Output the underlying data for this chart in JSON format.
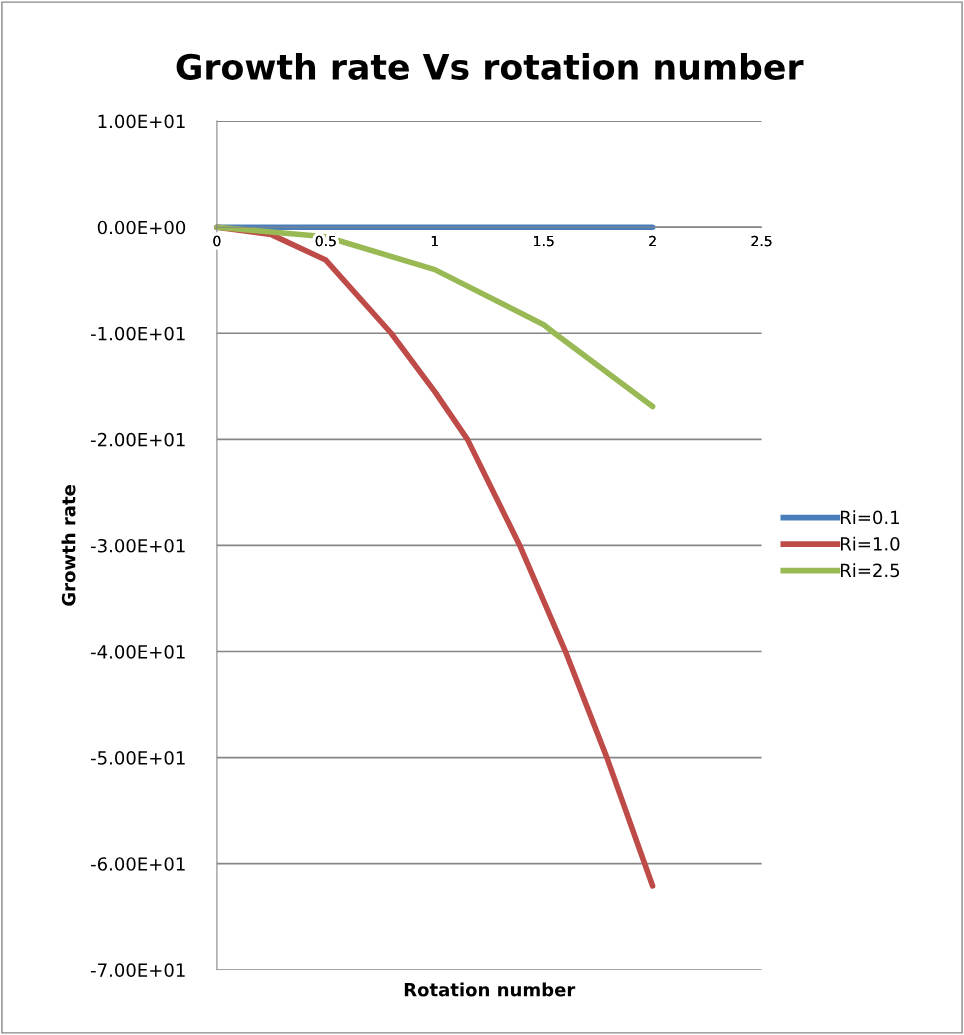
{
  "chart_data": {
    "type": "line",
    "title": "Growth rate Vs rotation number",
    "xlabel": "Rotation number",
    "ylabel": "Growth rate",
    "xlim": [
      0,
      2.5
    ],
    "xticks": [
      0,
      0.5,
      1,
      1.5,
      2,
      2.5
    ],
    "ylim": [
      -70,
      10
    ],
    "yticks": [
      {
        "value": 10,
        "label": "1.00E+01"
      },
      {
        "value": 0,
        "label": "0.00E+00"
      },
      {
        "value": -10,
        "label": "-1.00E+01"
      },
      {
        "value": -20,
        "label": "-2.00E+01"
      },
      {
        "value": -30,
        "label": "-3.00E+01"
      },
      {
        "value": -40,
        "label": "-4.00E+01"
      },
      {
        "value": -50,
        "label": "-5.00E+01"
      },
      {
        "value": -60,
        "label": "-6.00E+01"
      },
      {
        "value": -70,
        "label": "-7.00E+01"
      }
    ],
    "grid": "y",
    "legend": "right",
    "marker": "none",
    "line_style": "solid",
    "series": [
      {
        "name": "Ri=0.1",
        "color": "#4a7ebb",
        "x": [
          0,
          0.5,
          1,
          1.5,
          2
        ],
        "values": [
          0,
          0,
          0,
          0,
          0
        ]
      },
      {
        "name": "Ri=1.0",
        "color": "#be4b48",
        "x": [
          0,
          0.25,
          0.5,
          0.8,
          1.0,
          1.15,
          1.39,
          1.6,
          1.79,
          2
        ],
        "values": [
          0,
          -0.7,
          -3.1,
          -10,
          -15.5,
          -20,
          -30,
          -40,
          -50,
          -62.1
        ]
      },
      {
        "name": "Ri=2.5",
        "color": "#98b954",
        "x": [
          0,
          0.5,
          1,
          1.5,
          1.55,
          2
        ],
        "values": [
          0,
          -0.9,
          -4.0,
          -9.2,
          -10,
          -16.9
        ]
      }
    ]
  }
}
